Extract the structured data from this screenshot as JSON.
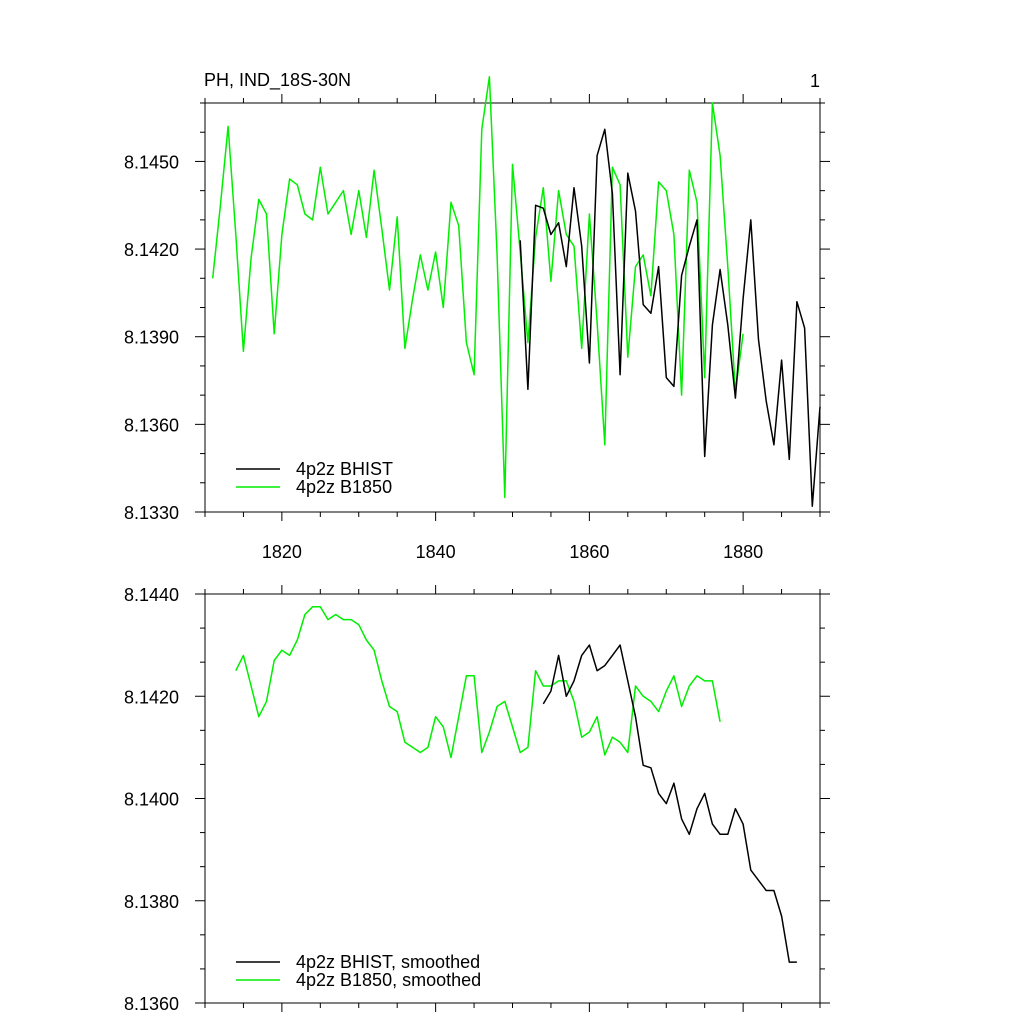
{
  "title_left": "PH, IND_18S-30N",
  "title_right": "1",
  "colors": {
    "bhist": "#000000",
    "b1850": "#00ee00"
  },
  "chart_data": [
    {
      "type": "line",
      "xlim": [
        1810,
        1890
      ],
      "ylim": [
        8.133,
        8.147
      ],
      "xticks": [
        1820,
        1840,
        1860,
        1880
      ],
      "xtick_labels": [
        "1820",
        "1840",
        "1860",
        "1880"
      ],
      "yticks": [
        8.133,
        8.136,
        8.139,
        8.142,
        8.145
      ],
      "ytick_labels": [
        "8.1330",
        "8.1360",
        "8.1390",
        "8.1420",
        "8.1450"
      ],
      "legend": "bottom-left",
      "series": [
        {
          "name": "4p2z BHIST",
          "color": "#000000",
          "x": [
            1851,
            1852,
            1853,
            1854,
            1855,
            1856,
            1857,
            1858,
            1859,
            1860,
            1861,
            1862,
            1863,
            1864,
            1865,
            1866,
            1867,
            1868,
            1869,
            1870,
            1871,
            1872,
            1873,
            1874,
            1875,
            1876,
            1877,
            1878,
            1879,
            1880,
            1881,
            1882,
            1883,
            1884,
            1885,
            1886,
            1887,
            1888,
            1889,
            1890
          ],
          "y": [
            8.1423,
            8.1372,
            8.1435,
            8.1434,
            8.1425,
            8.1429,
            8.1414,
            8.1441,
            8.1421,
            8.1381,
            8.1452,
            8.1461,
            8.1439,
            8.1377,
            8.1446,
            8.1433,
            8.1401,
            8.1398,
            8.1414,
            8.1376,
            8.1373,
            8.1411,
            8.1421,
            8.143,
            8.1349,
            8.1394,
            8.1413,
            8.1394,
            8.1369,
            8.1403,
            8.143,
            8.1389,
            8.1368,
            8.1353,
            8.1382,
            8.1348,
            8.1402,
            8.1393,
            8.1332,
            8.1366
          ]
        },
        {
          "name": "4p2z B1850",
          "color": "#00ee00",
          "x": [
            1811,
            1812,
            1813,
            1814,
            1815,
            1816,
            1817,
            1818,
            1819,
            1820,
            1821,
            1822,
            1823,
            1824,
            1825,
            1826,
            1827,
            1828,
            1829,
            1830,
            1831,
            1832,
            1833,
            1834,
            1835,
            1836,
            1837,
            1838,
            1839,
            1840,
            1841,
            1842,
            1843,
            1844,
            1845,
            1846,
            1847,
            1848,
            1849,
            1850,
            1851,
            1852,
            1853,
            1854,
            1855,
            1856,
            1857,
            1858,
            1859,
            1860,
            1861,
            1862,
            1863,
            1864,
            1865,
            1866,
            1867,
            1868,
            1869,
            1870,
            1871,
            1872,
            1873,
            1874,
            1875,
            1876,
            1877,
            1878,
            1879,
            1880
          ],
          "y": [
            8.141,
            8.1435,
            8.1462,
            8.1425,
            8.1385,
            8.1417,
            8.1437,
            8.1432,
            8.1391,
            8.1425,
            8.1444,
            8.1442,
            8.1432,
            8.143,
            8.1448,
            8.1432,
            8.1436,
            8.144,
            8.1425,
            8.144,
            8.1424,
            8.1447,
            8.1427,
            8.1406,
            8.1431,
            8.1386,
            8.1403,
            8.1418,
            8.1406,
            8.1419,
            8.14,
            8.1436,
            8.1428,
            8.1388,
            8.1377,
            8.1461,
            8.1479,
            8.1418,
            8.1335,
            8.1449,
            8.1419,
            8.1388,
            8.1424,
            8.1441,
            8.1409,
            8.144,
            8.1425,
            8.1421,
            8.1386,
            8.1432,
            8.1395,
            8.1353,
            8.1448,
            8.1442,
            8.1383,
            8.1414,
            8.1418,
            8.1404,
            8.1443,
            8.144,
            8.1425,
            8.137,
            8.1447,
            8.1436,
            8.1376,
            8.147,
            8.1452,
            8.1414,
            8.1371,
            8.1391
          ]
        }
      ]
    },
    {
      "type": "line",
      "xlim": [
        1810,
        1890
      ],
      "ylim": [
        8.136,
        8.144
      ],
      "xticks": [
        1820,
        1840,
        1860,
        1880
      ],
      "yticks": [
        8.136,
        8.138,
        8.14,
        8.142,
        8.144
      ],
      "ytick_labels": [
        "8.1360",
        "8.1380",
        "8.1400",
        "8.1420",
        "8.1440"
      ],
      "legend": "bottom-left",
      "series": [
        {
          "name": "4p2z BHIST, smoothed",
          "color": "#000000",
          "x": [
            1854,
            1855,
            1856,
            1857,
            1858,
            1859,
            1860,
            1861,
            1862,
            1863,
            1864,
            1865,
            1866,
            1867,
            1868,
            1869,
            1870,
            1871,
            1872,
            1873,
            1874,
            1875,
            1876,
            1877,
            1878,
            1879,
            1880,
            1881,
            1882,
            1883,
            1884,
            1885,
            1886,
            1887
          ],
          "y": [
            8.14185,
            8.1421,
            8.1428,
            8.142,
            8.1423,
            8.1428,
            8.143,
            8.1425,
            8.1426,
            8.1428,
            8.143,
            8.1423,
            8.1416,
            8.14065,
            8.1406,
            8.1401,
            8.1399,
            8.1403,
            8.1396,
            8.1393,
            8.1398,
            8.1401,
            8.1395,
            8.1393,
            8.1393,
            8.1398,
            8.1395,
            8.1386,
            8.1384,
            8.1382,
            8.1382,
            8.1377,
            8.1368,
            8.1368
          ]
        },
        {
          "name": "4p2z B1850, smoothed",
          "color": "#00ee00",
          "x": [
            1814,
            1815,
            1816,
            1817,
            1818,
            1819,
            1820,
            1821,
            1822,
            1823,
            1824,
            1825,
            1826,
            1827,
            1828,
            1829,
            1830,
            1831,
            1832,
            1833,
            1834,
            1835,
            1836,
            1837,
            1838,
            1839,
            1840,
            1841,
            1842,
            1843,
            1844,
            1845,
            1846,
            1847,
            1848,
            1849,
            1850,
            1851,
            1852,
            1853,
            1854,
            1855,
            1856,
            1857,
            1858,
            1859,
            1860,
            1861,
            1862,
            1863,
            1864,
            1865,
            1866,
            1867,
            1868,
            1869,
            1870,
            1871,
            1872,
            1873,
            1874,
            1875,
            1876,
            1877
          ],
          "y": [
            8.1425,
            8.1428,
            8.1422,
            8.1416,
            8.1419,
            8.1427,
            8.1429,
            8.1428,
            8.1431,
            8.1436,
            8.14375,
            8.14375,
            8.1435,
            8.1436,
            8.1435,
            8.1435,
            8.1434,
            8.1431,
            8.1429,
            8.1423,
            8.1418,
            8.1417,
            8.1411,
            8.141,
            8.1409,
            8.141,
            8.1416,
            8.1414,
            8.1408,
            8.1416,
            8.1424,
            8.1424,
            8.1409,
            8.1413,
            8.1418,
            8.1419,
            8.1414,
            8.1409,
            8.141,
            8.1425,
            8.1422,
            8.1422,
            8.1423,
            8.1423,
            8.1419,
            8.1412,
            8.1413,
            8.1416,
            8.14085,
            8.1412,
            8.1411,
            8.1409,
            8.1422,
            8.142,
            8.1419,
            8.1417,
            8.1421,
            8.1424,
            8.1418,
            8.1422,
            8.1424,
            8.1423,
            8.1423,
            8.1415
          ]
        }
      ]
    }
  ]
}
